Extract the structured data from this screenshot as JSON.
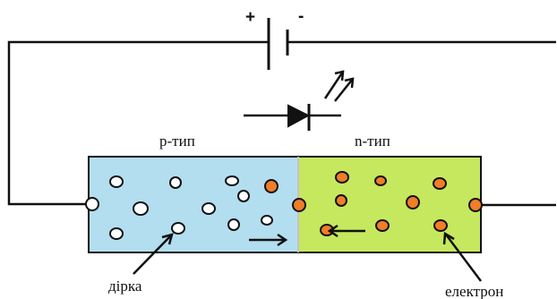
{
  "battery": {
    "plus_sign": "+",
    "minus_sign": "-"
  },
  "regions": {
    "p_label": "р-тип",
    "n_label": "n-тип",
    "p_color": "#b3def0",
    "n_color": "#c6e85e"
  },
  "annotations": {
    "hole_label": "дірка",
    "electron_label": "електрон"
  },
  "colors": {
    "hole_fill": "#ffffff",
    "electron_fill": "#f07d28",
    "stroke": "#111111"
  }
}
